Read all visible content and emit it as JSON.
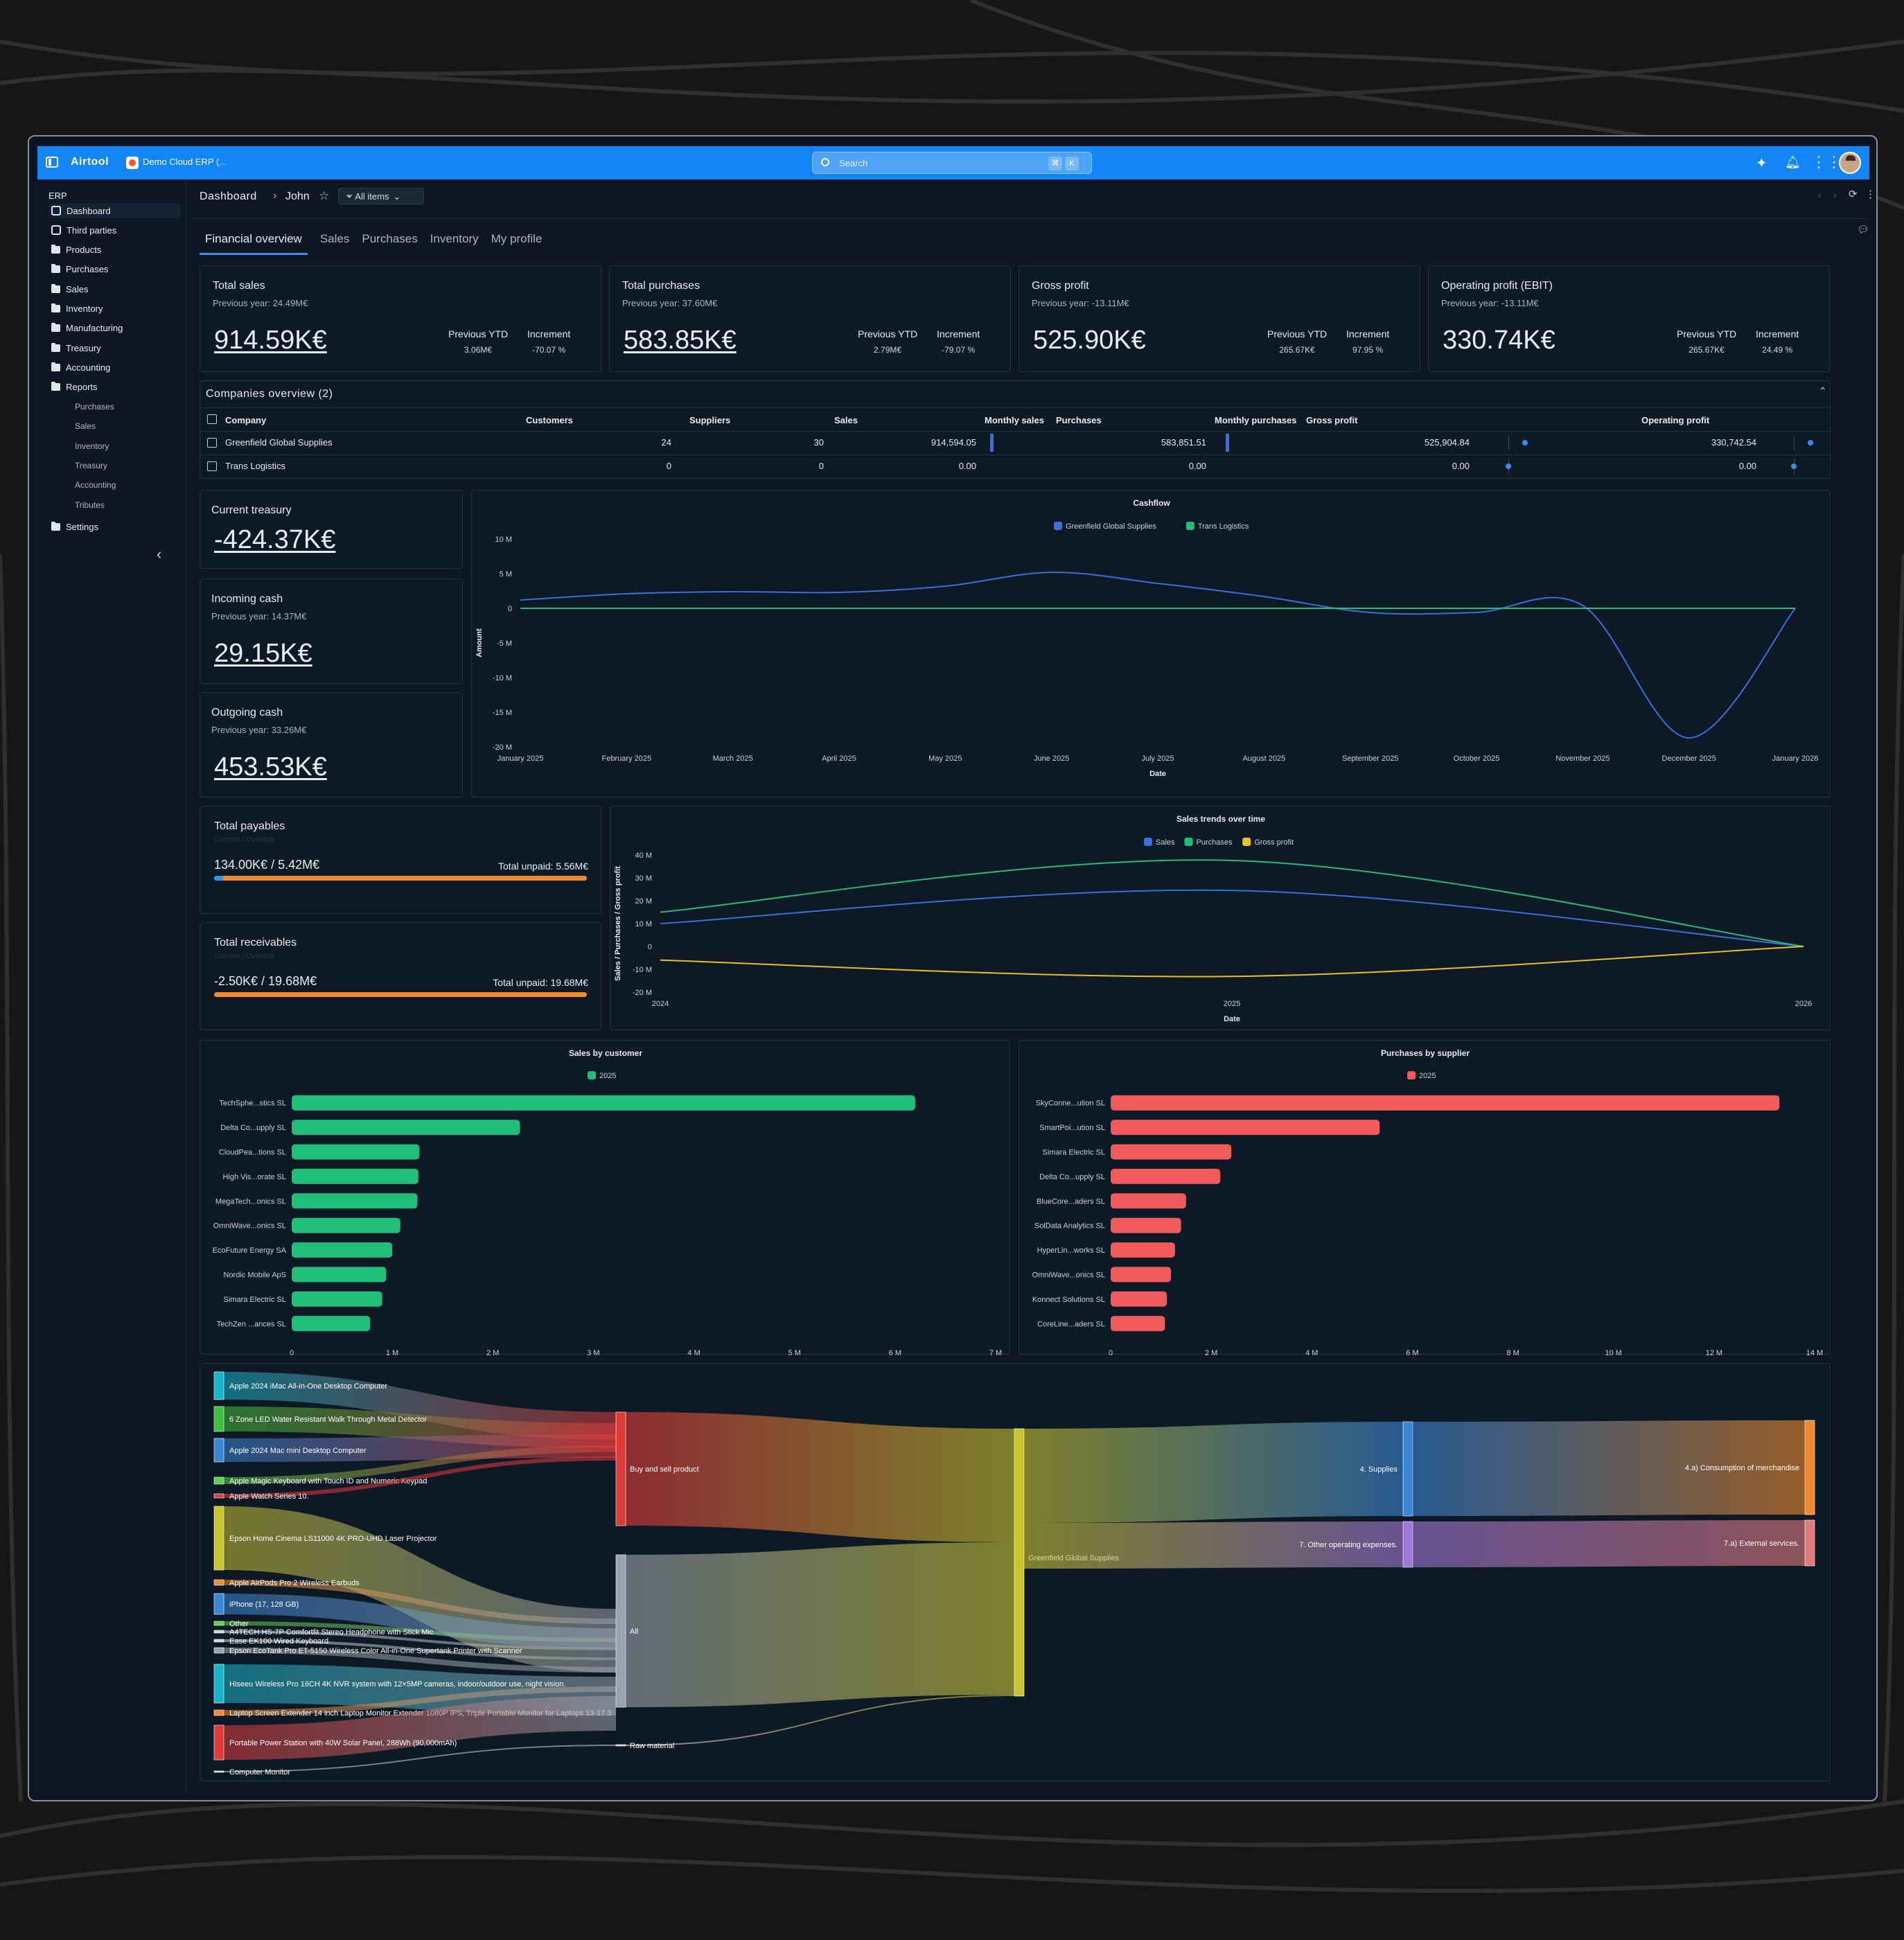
{
  "app": {
    "name": "Airtool",
    "workspace": "Demo Cloud ERP (...",
    "search_placeholder": "Search",
    "kbd1": "⌘",
    "kbd2": "K"
  },
  "sidebar": {
    "section": "ERP",
    "items": [
      {
        "label": "Dashboard",
        "icon": "dashboard-icon"
      },
      {
        "label": "Third parties",
        "icon": "contacts-icon"
      },
      {
        "label": "Products",
        "icon": "folder-icon"
      },
      {
        "label": "Purchases",
        "icon": "folder-icon"
      },
      {
        "label": "Sales",
        "icon": "folder-icon"
      },
      {
        "label": "Inventory",
        "icon": "folder-icon"
      },
      {
        "label": "Manufacturing",
        "icon": "folder-icon"
      },
      {
        "label": "Treasury",
        "icon": "folder-icon"
      },
      {
        "label": "Accounting",
        "icon": "folder-icon"
      },
      {
        "label": "Reports",
        "icon": "folder-icon"
      }
    ],
    "report_items": [
      "Purchases",
      "Sales",
      "Inventory",
      "Treasury",
      "Accounting",
      "Tributes"
    ],
    "settings": "Settings"
  },
  "header": {
    "breadcrumb_root": "Dashboard",
    "breadcrumb_current": "John",
    "filter": "All items"
  },
  "tabs": [
    "Financial overview",
    "Sales",
    "Purchases",
    "Inventory",
    "My profile"
  ],
  "kpis": [
    {
      "title": "Total sales",
      "previous": "Previous year: 24.49M€",
      "value": "914.59K€",
      "ytd_label": "Previous YTD",
      "ytd": "3.06M€",
      "inc_label": "Increment",
      "inc": "-70.07 %"
    },
    {
      "title": "Total purchases",
      "previous": "Previous year: 37.60M€",
      "value": "583.85K€",
      "ytd_label": "Previous YTD",
      "ytd": "2.79M€",
      "inc_label": "Increment",
      "inc": "-79.07 %"
    },
    {
      "title": "Gross profit",
      "previous": "Previous year: -13.11M€",
      "value": "525.90K€",
      "ytd_label": "Previous YTD",
      "ytd": "265.67K€",
      "inc_label": "Increment",
      "inc": "97.95 %"
    },
    {
      "title": "Operating profit (EBIT)",
      "previous": "Previous year: -13.11M€",
      "value": "330.74K€",
      "ytd_label": "Previous YTD",
      "ytd": "265.67K€",
      "inc_label": "Increment",
      "inc": "24.49 %"
    }
  ],
  "companies": {
    "title": "Companies overview (2)",
    "columns": [
      "Company",
      "Customers",
      "Suppliers",
      "Sales",
      "Monthly sales",
      "Purchases",
      "Monthly purchases",
      "Gross profit",
      "Operating profit"
    ],
    "rows": [
      {
        "company": "Greenfield Global Supplies",
        "customers": "24",
        "suppliers": "30",
        "sales": "914,594.05",
        "purchases": "583,851.51",
        "gross": "525,904.84",
        "operating": "330,742.54"
      },
      {
        "company": "Trans Logistics",
        "customers": "0",
        "suppliers": "0",
        "sales": "0.00",
        "purchases": "0.00",
        "gross": "0.00",
        "operating": "0.00"
      }
    ]
  },
  "treasury": {
    "current_title": "Current treasury",
    "current_value": "-424.37K€",
    "incoming_title": "Incoming cash",
    "incoming_prev": "Previous year: 14.37M€",
    "incoming_value": "29.15K€",
    "outgoing_title": "Outgoing cash",
    "outgoing_prev": "Previous year: 33.26M€",
    "outgoing_value": "453.53K€"
  },
  "payables": {
    "title": "Total payables",
    "hint": "Current / Overdue",
    "value": "134.00K€ / 5.42M€",
    "unpaid": "Total unpaid: 5.56M€",
    "fill": 0.024
  },
  "receivables": {
    "title": "Total receivables",
    "hint": "Current / Overdue",
    "value": "-2.50K€ / 19.68M€",
    "unpaid": "Total unpaid: 19.68M€",
    "fill": 0
  },
  "colors": {
    "accent": "#1485f5",
    "blue": "#3b6fe0",
    "green": "#1fbf7a",
    "yellow": "#e6c12a",
    "red": "#f05a5a",
    "orange": "#f08a2c"
  },
  "chart_data": [
    {
      "type": "line",
      "title": "Cashflow",
      "xlabel": "Date",
      "ylabel": "Amount",
      "x": [
        "January 2025",
        "February 2025",
        "March 2025",
        "April 2025",
        "May 2025",
        "June 2025",
        "July 2025",
        "August 2025",
        "September 2025",
        "October 2025",
        "November 2025",
        "December 2025",
        "January 2026"
      ],
      "yticks": [
        "10 M",
        "5 M",
        "0",
        "-5 M",
        "-10 M",
        "-15 M",
        "-20 M"
      ],
      "ylim": [
        -20,
        10
      ],
      "unit": "M",
      "series": [
        {
          "name": "Greenfield Global Supplies",
          "color": "#3b6fe0",
          "values": [
            1.2,
            2.1,
            2.4,
            2.3,
            3.2,
            5.2,
            3.6,
            1.7,
            -0.6,
            -0.6,
            0.4,
            -18.7,
            0
          ]
        },
        {
          "name": "Trans Logistics",
          "color": "#1fbf7a",
          "values": [
            0,
            0,
            0,
            0,
            0,
            0,
            0,
            0,
            0,
            0,
            0,
            0,
            0
          ]
        }
      ]
    },
    {
      "type": "line",
      "title": "Sales trends over time",
      "xlabel": "Date",
      "ylabel": "Sales / Purchases / Gross profit",
      "x": [
        "2024",
        "2025",
        "2026"
      ],
      "yticks": [
        "40 M",
        "30 M",
        "20 M",
        "10 M",
        "0",
        "-10 M",
        "-20 M"
      ],
      "ylim": [
        -20,
        40
      ],
      "unit": "M",
      "series": [
        {
          "name": "Sales",
          "color": "#3b6fe0",
          "values": [
            10,
            24.5,
            0
          ]
        },
        {
          "name": "Purchases",
          "color": "#1fbf7a",
          "values": [
            15,
            37.6,
            0
          ]
        },
        {
          "name": "Gross profit",
          "color": "#e6c12a",
          "values": [
            -6,
            -13.1,
            0
          ]
        }
      ]
    },
    {
      "type": "bar",
      "title": "Sales by customer",
      "legend": "2025",
      "color": "#1fbf7a",
      "categories": [
        "TechSphe...stics SL",
        "Delta Co...upply SL",
        "CloudPea...tions SL",
        "High Vis...orate SL",
        "MegaTech...onics SL",
        "OmniWave...onics SL",
        "EcoFuture Energy SA",
        "Nordic Mobile ApS",
        "Simara Electric SL",
        "TechZen ...ances SL"
      ],
      "values": [
        6.2,
        2.27,
        1.27,
        1.26,
        1.25,
        1.08,
        1.0,
        0.94,
        0.9,
        0.78
      ],
      "xticks": [
        "0",
        "1 M",
        "2 M",
        "3 M",
        "4 M",
        "5 M",
        "6 M",
        "7 M"
      ],
      "xlim": [
        0,
        7
      ]
    },
    {
      "type": "bar",
      "title": "Purchases by supplier",
      "legend": "2025",
      "color": "#f05a5a",
      "categories": [
        "SkyConne...ution SL",
        "SmartPoi...ution SL",
        "Simara Electric SL",
        "Delta Co...upply SL",
        "BlueCore...aders SL",
        "SolData Analytics SL",
        "HyperLin...works SL",
        "OmniWave...onics SL",
        "Konnect Solutions SL",
        "CoreLine...aders SL"
      ],
      "values": [
        13.3,
        5.35,
        2.4,
        2.18,
        1.5,
        1.4,
        1.28,
        1.2,
        1.12,
        1.08
      ],
      "xticks": [
        "0",
        "2 M",
        "4 M",
        "6 M",
        "8 M",
        "10 M",
        "12 M",
        "14 M"
      ],
      "xlim": [
        0,
        14
      ]
    }
  ],
  "sankey": {
    "sources": [
      "Apple 2024 iMac All-in-One Desktop Computer",
      "6 Zone LED Water Resistant Walk Through Metal Detector",
      "Apple 2024 Mac mini Desktop Computer",
      "Apple Magic Keyboard with Touch ID and Numeric Keypad",
      "Apple Watch Series 10.",
      "Epson Home Cinema LS11000 4K PRO-UHD Laser Projector",
      "Apple AirPods Pro 2 Wireless Earbuds",
      "iPhone (17, 128 GB)",
      "Other",
      "A4TECH HS-7P Comfortfit Stereo Headphone with Stick Mic",
      "Ease EK100 Wired Keyboard",
      "Epson EcoTank Pro ET-5150 Wireless Color All-in-One Supertank Printer with Scanner",
      "Hiseeu Wireless Pro 16CH 4K NVR system with 12×5MP cameras, indoor/outdoor use, night vision.",
      "Laptop Screen Extender 14 inch Laptop Monitor Extender 1080P IPS, Triple Portable Monitor for Laptops 13-17.3",
      "Portable Power Station with 40W Solar Panel, 288Wh (90,000mAh)",
      "Computer Monitor"
    ],
    "categories": [
      "Buy and sell product",
      "All",
      "Raw material"
    ],
    "company": "Greenfield Global Supplies",
    "groups": [
      "4. Supplies",
      "7. Other operating expenses."
    ],
    "accounts": [
      "4.a) Consumption of merchandise",
      "7.a) External services."
    ]
  }
}
